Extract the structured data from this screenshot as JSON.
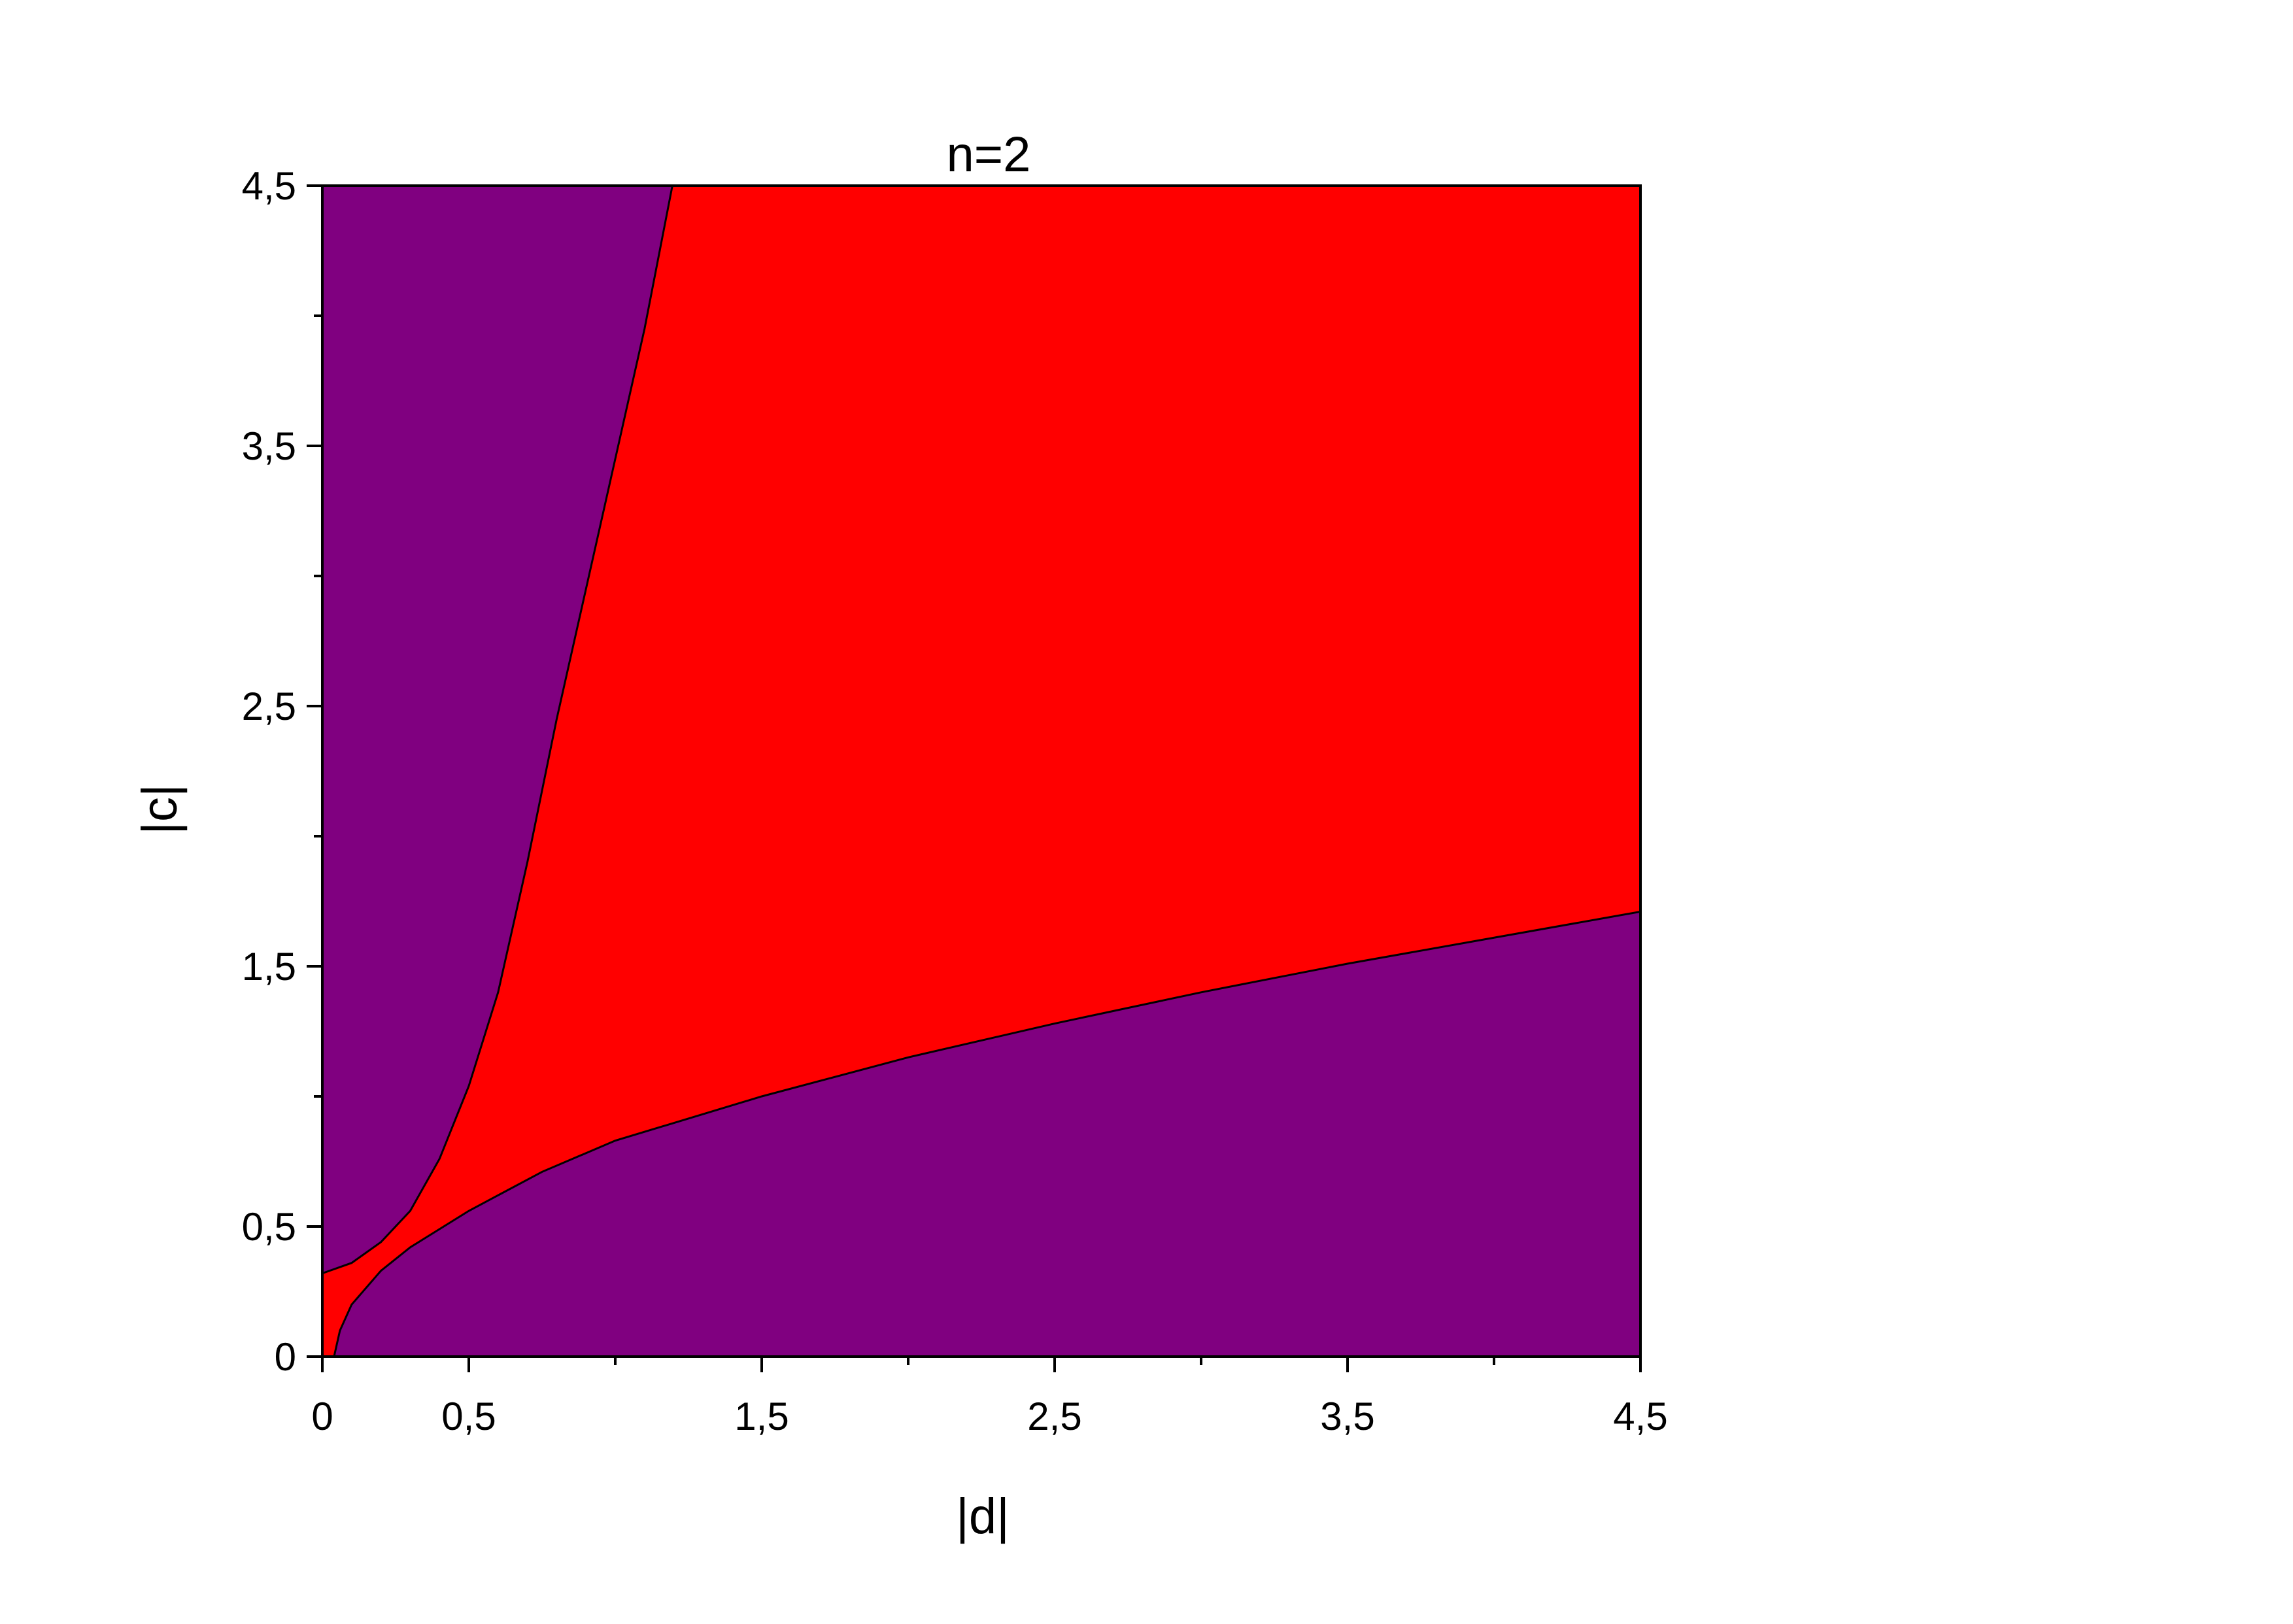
{
  "chart_data": {
    "type": "region",
    "title": "n=2",
    "xlabel": "|d|",
    "ylabel": "|c|",
    "background_color": "#800080",
    "fill_between_color": "#ff0000",
    "series": [
      {
        "x": [
          0,
          0.1,
          0.2,
          0.3,
          0.4,
          0.5,
          0.6,
          0.7,
          0.8,
          0.9,
          1.0,
          1.1,
          1.195
        ],
        "values": [
          0.32,
          0.36,
          0.44,
          0.56,
          0.76,
          1.04,
          1.4,
          1.9,
          2.45,
          2.95,
          3.45,
          3.95,
          4.5
        ]
      },
      {
        "x": [
          0.04,
          0.06,
          0.1,
          0.2,
          0.3,
          0.5,
          0.75,
          1.0,
          1.5,
          2.0,
          2.5,
          3.0,
          3.5,
          4.0,
          4.5
        ],
        "values": [
          0,
          0.1,
          0.2,
          0.33,
          0.42,
          0.56,
          0.71,
          0.83,
          1.0,
          1.15,
          1.28,
          1.4,
          1.51,
          1.61,
          1.71
        ]
      }
    ],
    "xlim": [
      0,
      4.5
    ],
    "ylim": [
      0,
      4.5
    ],
    "xticks": [
      0,
      {
        "value": 0.5,
        "label": "0,5"
      },
      {
        "value": 1.5,
        "label": "1,5"
      },
      {
        "value": 2.5,
        "label": "2,5"
      },
      {
        "value": 3.5,
        "label": "3,5"
      },
      {
        "value": 4.5,
        "label": "4,5"
      }
    ],
    "yticks": [
      0,
      {
        "value": 0.5,
        "label": "0,5"
      },
      {
        "value": 1.5,
        "label": "1,5"
      },
      {
        "value": 2.5,
        "label": "2,5"
      },
      {
        "value": 3.5,
        "label": "3,5"
      },
      {
        "value": 4.5,
        "label": "4,5"
      }
    ],
    "xminor": [
      1,
      2,
      3,
      4
    ],
    "yminor": [
      1,
      2,
      3,
      4
    ]
  }
}
